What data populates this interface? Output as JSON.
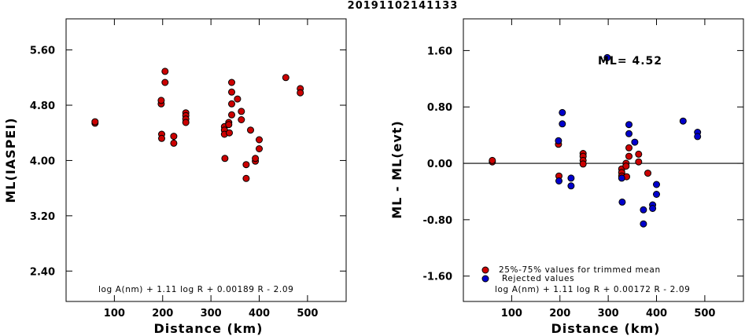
{
  "title": "20191102141133",
  "chart_data": [
    {
      "type": "scatter",
      "ylabel": "ML(IASPEI)",
      "xlabel": "Distance (km)",
      "xlim": [
        0,
        580
      ],
      "ylim": [
        1.96,
        6.05
      ],
      "xticks": [
        100,
        200,
        300,
        400,
        500
      ],
      "yticks": [
        2.4,
        3.2,
        4.0,
        4.8,
        5.6
      ],
      "ytick_labels": [
        "2.40",
        "3.20",
        "4.00",
        "4.80",
        "5.60"
      ],
      "formula": "log A(nm) + 1.11 log R + 0.00189 R - 2.09",
      "grid": false,
      "series": [
        {
          "color": "#cc0000",
          "points": [
            [
              60,
              4.54
            ],
            [
              60,
              4.56
            ],
            [
              197,
              4.82
            ],
            [
              197,
              4.87
            ],
            [
              198,
              4.38
            ],
            [
              198,
              4.32
            ],
            [
              205,
              5.13
            ],
            [
              205,
              5.29
            ],
            [
              223,
              4.35
            ],
            [
              223,
              4.25
            ],
            [
              248,
              4.69
            ],
            [
              248,
              4.65
            ],
            [
              248,
              4.6
            ],
            [
              248,
              4.55
            ],
            [
              328,
              4.49
            ],
            [
              328,
              4.44
            ],
            [
              328,
              4.38
            ],
            [
              329,
              4.03
            ],
            [
              337,
              4.55
            ],
            [
              337,
              4.52
            ],
            [
              338,
              4.4
            ],
            [
              343,
              4.66
            ],
            [
              343,
              4.82
            ],
            [
              343,
              4.99
            ],
            [
              343,
              5.13
            ],
            [
              355,
              4.89
            ],
            [
              363,
              4.71
            ],
            [
              363,
              4.59
            ],
            [
              373,
              3.94
            ],
            [
              373,
              3.74
            ],
            [
              382,
              4.44
            ],
            [
              392,
              3.99
            ],
            [
              392,
              4.03
            ],
            [
              400,
              4.17
            ],
            [
              400,
              4.3
            ],
            [
              455,
              5.2
            ],
            [
              485,
              5.04
            ],
            [
              485,
              4.98
            ]
          ]
        }
      ]
    },
    {
      "type": "scatter",
      "ylabel": "ML - ML(evt)",
      "xlabel": "Distance (km)",
      "xlim": [
        0,
        580
      ],
      "ylim": [
        -1.96,
        2.05
      ],
      "xticks": [
        100,
        200,
        300,
        400,
        500
      ],
      "yticks": [
        -1.6,
        -0.8,
        0.0,
        0.8,
        1.6
      ],
      "ytick_labels": [
        "-1.60",
        "-0.80",
        "0.00",
        "0.80",
        "1.60"
      ],
      "reference_line_y": 0.0,
      "annotation": "ML= 4.52",
      "formula": "log A(nm) + 1.11 log R + 0.00172 R - 2.09",
      "legend_position": "bottom-left",
      "grid": false,
      "series": [
        {
          "name": "25%-75% values for trimmed mean",
          "color": "#cc0000",
          "points": [
            [
              60,
              0.02
            ],
            [
              60,
              0.04
            ],
            [
              197,
              0.27
            ],
            [
              198,
              -0.18
            ],
            [
              248,
              0.14
            ],
            [
              248,
              0.1
            ],
            [
              248,
              0.04
            ],
            [
              248,
              -0.01
            ],
            [
              328,
              -0.08
            ],
            [
              328,
              -0.13
            ],
            [
              328,
              -0.18
            ],
            [
              337,
              0.0
            ],
            [
              337,
              -0.04
            ],
            [
              338,
              -0.19
            ],
            [
              343,
              0.1
            ],
            [
              343,
              0.22
            ],
            [
              363,
              0.13
            ],
            [
              363,
              0.02
            ],
            [
              382,
              -0.14
            ]
          ]
        },
        {
          "name": "Rejected values",
          "color": "#0000cc",
          "points": [
            [
              197,
              0.32
            ],
            [
              198,
              -0.25
            ],
            [
              205,
              0.56
            ],
            [
              205,
              0.72
            ],
            [
              223,
              -0.21
            ],
            [
              223,
              -0.32
            ],
            [
              328,
              -0.21
            ],
            [
              329,
              -0.55
            ],
            [
              343,
              0.42
            ],
            [
              343,
              0.55
            ],
            [
              355,
              0.3
            ],
            [
              373,
              -0.66
            ],
            [
              373,
              -0.86
            ],
            [
              392,
              -0.59
            ],
            [
              392,
              -0.64
            ],
            [
              400,
              -0.44
            ],
            [
              400,
              -0.3
            ],
            [
              455,
              0.6
            ],
            [
              485,
              0.44
            ],
            [
              485,
              0.38
            ]
          ]
        },
        {
          "name": "",
          "color": "#0000cc",
          "points": [
            [
              298,
              1.5
            ]
          ]
        }
      ]
    }
  ]
}
